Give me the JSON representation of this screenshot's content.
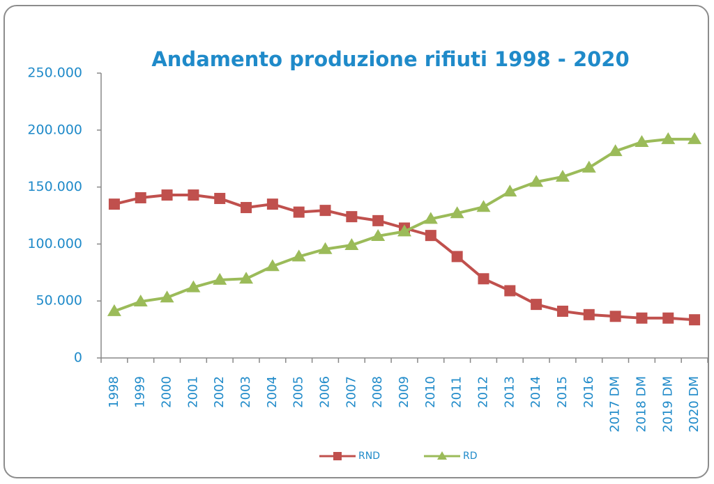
{
  "chart_data": {
    "type": "line",
    "title": "Andamento produzione rifiuti 1998 - 2020",
    "categories": [
      "1998",
      "1999",
      "2000",
      "2001",
      "2002",
      "2003",
      "2004",
      "2005",
      "2006",
      "2007",
      "2008",
      "2009",
      "2010",
      "2011",
      "2012",
      "2013",
      "2014",
      "2015",
      "2016",
      "2017 DM",
      "2018 DM",
      "2019 DM",
      "2020 DM"
    ],
    "series": [
      {
        "name": "RND",
        "color": "#c0504d",
        "marker": "square",
        "values": [
          135000,
          140600,
          143000,
          143000,
          140000,
          132000,
          135000,
          128000,
          129500,
          124000,
          120500,
          114000,
          107500,
          89000,
          69500,
          59000,
          47000,
          41000,
          38000,
          36500,
          35000,
          35000,
          33500
        ]
      },
      {
        "name": "RD",
        "color": "#9bbb59",
        "marker": "triangle",
        "values": [
          41000,
          49500,
          53000,
          62000,
          68500,
          69500,
          80500,
          89000,
          95500,
          99000,
          107000,
          111000,
          122000,
          127000,
          132500,
          146000,
          154500,
          159000,
          167000,
          181500,
          189500,
          192000,
          192000
        ]
      }
    ],
    "ylim": [
      0,
      250000
    ],
    "yticks": [
      0,
      {
        "value": 50000,
        "label": "50.000"
      },
      {
        "value": 100000,
        "label": "100.000"
      },
      {
        "value": 150000,
        "label": "150.000"
      },
      {
        "value": 200000,
        "label": "200.000"
      },
      {
        "value": 250000,
        "label": "250.000"
      }
    ],
    "grid": false,
    "legend": "bottom"
  }
}
